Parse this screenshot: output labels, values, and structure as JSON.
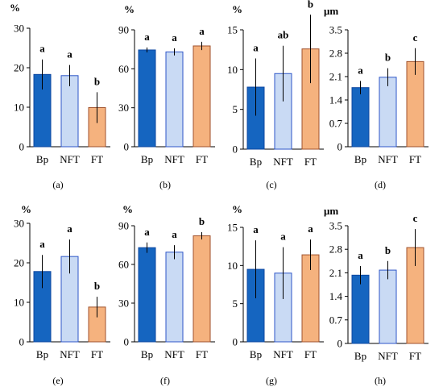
{
  "colors": {
    "Bp": "#1565c0",
    "NFT": "#c9daf4",
    "FT": "#f5b27e",
    "Bp_stroke": "#0d47a1",
    "NFT_stroke": "#2e56c8",
    "FT_stroke": "#a0522d",
    "axis": "#000000"
  },
  "chart_data": [
    {
      "id": "a",
      "type": "bar",
      "caption": "(a)",
      "unit": "%",
      "ylim": [
        0,
        30
      ],
      "yticks": [
        0,
        10,
        20,
        30
      ],
      "categories": [
        "Bp",
        "NFT",
        "FT"
      ],
      "values": [
        18.3,
        18.0,
        9.9
      ],
      "errors": [
        3.8,
        2.7,
        3.9
      ],
      "letters": [
        "a",
        "a",
        "b"
      ]
    },
    {
      "id": "b",
      "type": "bar",
      "caption": "(b)",
      "unit": "%",
      "ylim": [
        0,
        90
      ],
      "yticks": [
        0,
        30,
        60,
        90
      ],
      "categories": [
        "Bp",
        "NFT",
        "FT"
      ],
      "values": [
        74.5,
        73.0,
        77.6
      ],
      "errors": [
        1.9,
        2.7,
        3.2
      ],
      "letters": [
        "a",
        "a",
        "a"
      ]
    },
    {
      "id": "c",
      "type": "bar",
      "caption": "(c)",
      "unit": "%",
      "ylim": [
        0,
        15
      ],
      "yticks": [
        0,
        5,
        10,
        15
      ],
      "categories": [
        "Bp",
        "NFT",
        "FT"
      ],
      "values": [
        7.8,
        9.5,
        12.6
      ],
      "errors": [
        3.6,
        3.5,
        4.3
      ],
      "letters": [
        "a",
        "ab",
        "b"
      ]
    },
    {
      "id": "d",
      "type": "bar",
      "caption": "(d)",
      "unit": "μm",
      "ylim": [
        0,
        3.5
      ],
      "yticks": [
        "0",
        "0.7",
        "1.4",
        "2.1",
        "2.8",
        "3.5"
      ],
      "categories": [
        "Bp",
        "NFT",
        "FT"
      ],
      "values": [
        1.77,
        2.08,
        2.55
      ],
      "errors": [
        0.2,
        0.27,
        0.4
      ],
      "letters": [
        "a",
        "b",
        "c"
      ]
    },
    {
      "id": "e",
      "type": "bar",
      "caption": "(e)",
      "unit": "%",
      "ylim": [
        0,
        30
      ],
      "yticks": [
        0,
        10,
        20,
        30
      ],
      "categories": [
        "Bp",
        "NFT",
        "FT"
      ],
      "values": [
        17.8,
        21.6,
        8.8
      ],
      "errors": [
        4.2,
        4.3,
        2.6
      ],
      "letters": [
        "a",
        "a",
        "b"
      ]
    },
    {
      "id": "f",
      "type": "bar",
      "caption": "(f)",
      "unit": "%",
      "ylim": [
        0,
        90
      ],
      "yticks": [
        0,
        30,
        60,
        90
      ],
      "categories": [
        "Bp",
        "NFT",
        "FT"
      ],
      "values": [
        73.0,
        69.5,
        82.2
      ],
      "errors": [
        4.0,
        5.4,
        2.8
      ],
      "letters": [
        "a",
        "a",
        "b"
      ]
    },
    {
      "id": "g",
      "type": "bar",
      "caption": "(g)",
      "unit": "%",
      "ylim": [
        0,
        15
      ],
      "yticks": [
        0,
        5,
        10,
        15
      ],
      "categories": [
        "Bp",
        "NFT",
        "FT"
      ],
      "values": [
        9.5,
        9.0,
        11.4
      ],
      "errors": [
        3.8,
        3.4,
        2.0
      ],
      "letters": [
        "a",
        "a",
        "a"
      ]
    },
    {
      "id": "h",
      "type": "bar",
      "caption": "(h)",
      "unit": "μm",
      "ylim": [
        0,
        3.5
      ],
      "yticks": [
        "0",
        "0.7",
        "1.4",
        "2.1",
        "2.8",
        "3.5"
      ],
      "categories": [
        "Bp",
        "NFT",
        "FT"
      ],
      "values": [
        2.03,
        2.18,
        2.85
      ],
      "errors": [
        0.27,
        0.27,
        0.55
      ],
      "letters": [
        "a",
        "b",
        "c"
      ]
    }
  ]
}
